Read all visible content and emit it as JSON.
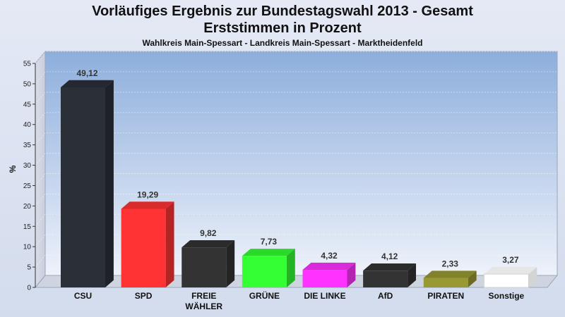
{
  "title_line1": "Vorläufiges Ergebnis zur Bundestagswahl 2013 - Gesamt",
  "title_line2": "Erststimmen in Prozent",
  "subtitle": "Wahlkreis Main-Spessart - Landkreis Main-Spessart - Marktheidenfeld",
  "chart_data": {
    "type": "bar",
    "title": "Vorläufiges Ergebnis zur Bundestagswahl 2013 - Gesamt Erststimmen in Prozent",
    "subtitle": "Wahlkreis Main-Spessart - Landkreis Main-Spessart - Marktheidenfeld",
    "ylabel": "%",
    "ylim": [
      0,
      55
    ],
    "yticks": [
      "0",
      "5",
      "10",
      "15",
      "20",
      "25",
      "30",
      "35",
      "40",
      "45",
      "50",
      "55"
    ],
    "categories": [
      "CSU",
      "SPD",
      "FREIE WÄHLER",
      "GRÜNE",
      "DIE LINKE",
      "AfD",
      "PIRATEN",
      "Sonstige"
    ],
    "category_lines": [
      [
        "CSU"
      ],
      [
        "SPD"
      ],
      [
        "FREIE",
        "WÄHLER"
      ],
      [
        "GRÜNE"
      ],
      [
        "DIE LINKE"
      ],
      [
        "AfD"
      ],
      [
        "PIRATEN"
      ],
      [
        "Sonstige"
      ]
    ],
    "values": [
      49.12,
      19.29,
      9.82,
      7.73,
      4.32,
      4.12,
      2.33,
      3.27
    ],
    "value_labels": [
      "49,12",
      "19,29",
      "9,82",
      "7,73",
      "4,32",
      "4,12",
      "2,33",
      "3,27"
    ],
    "colors": [
      "#2b2f38",
      "#ff3333",
      "#333333",
      "#33ff33",
      "#ff33ff",
      "#333333",
      "#999933",
      "#ffffff"
    ],
    "grid": true,
    "legend": "none"
  }
}
